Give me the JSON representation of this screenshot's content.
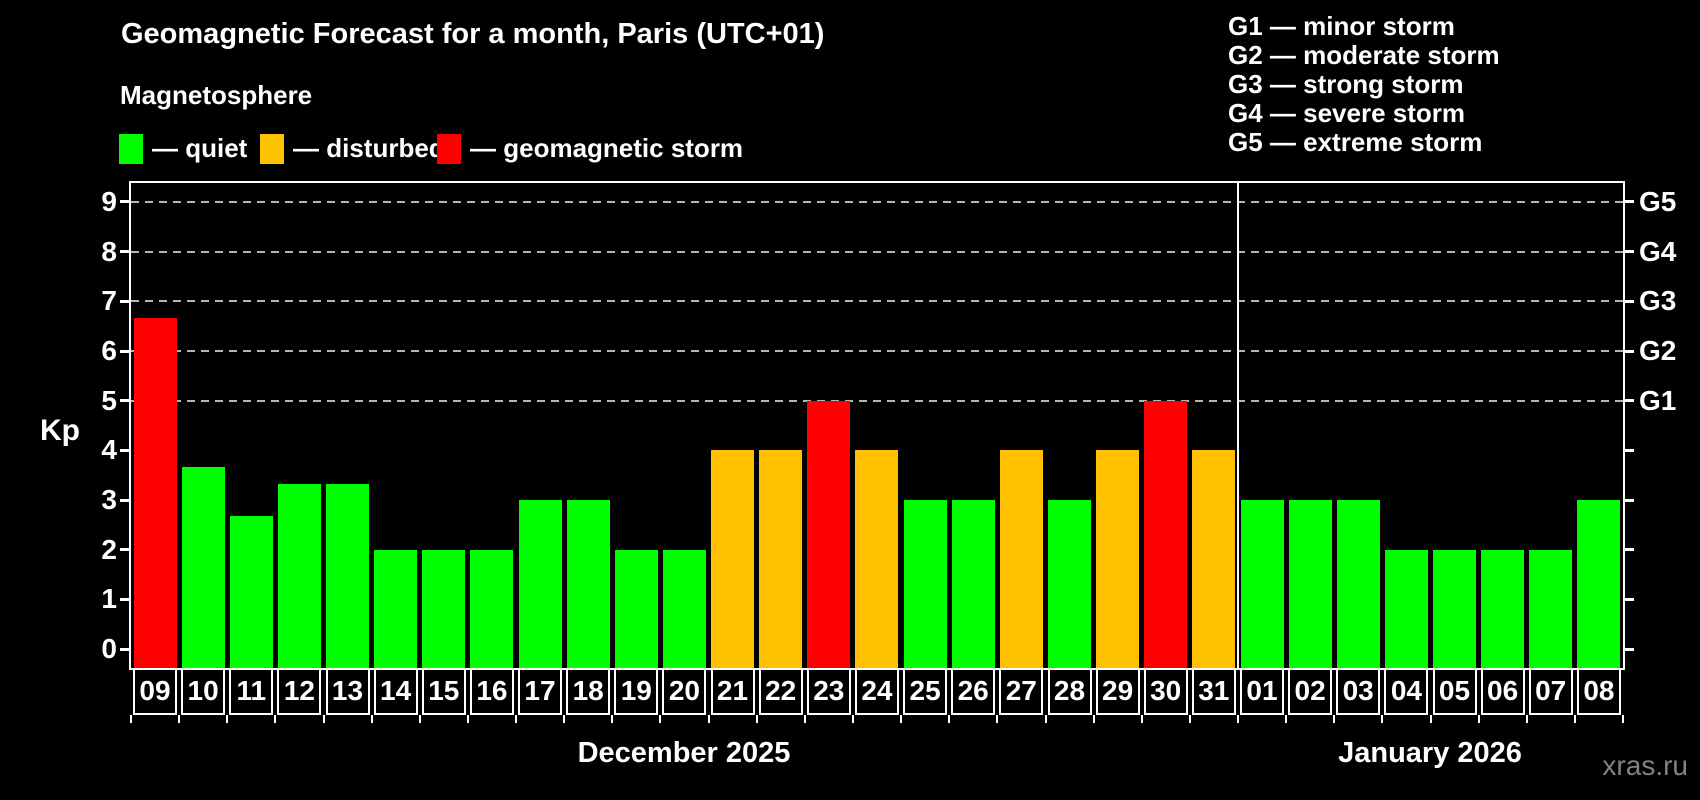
{
  "title": "Geomagnetic Forecast for a month, Paris (UTC+01)",
  "subtitle": "Magnetosphere",
  "legend": {
    "items": [
      {
        "status": "quiet",
        "label": "— quiet",
        "color": "#00ff00"
      },
      {
        "status": "disturbed",
        "label": "— disturbed",
        "color": "#ffc000"
      },
      {
        "status": "storm",
        "label": "— geomagnetic storm",
        "color": "#ff0000"
      }
    ]
  },
  "g_scale_legend": [
    "G1 — minor storm",
    "G2 — moderate storm",
    "G3 — strong storm",
    "G4 — severe storm",
    "G5 — extreme storm"
  ],
  "y_axis": {
    "label": "Kp",
    "ticks": [
      0,
      1,
      2,
      3,
      4,
      5,
      6,
      7,
      8,
      9
    ]
  },
  "right_axis": {
    "ticks": [
      {
        "label": "G1",
        "kp": 5
      },
      {
        "label": "G2",
        "kp": 6
      },
      {
        "label": "G3",
        "kp": 7
      },
      {
        "label": "G4",
        "kp": 8
      },
      {
        "label": "G5",
        "kp": 9
      }
    ]
  },
  "watermark": "xras.ru",
  "chart_data": {
    "type": "bar",
    "title": "Geomagnetic Forecast for a month, Paris (UTC+01)",
    "ylabel": "Kp",
    "ylim": [
      -0.38,
      9.38
    ],
    "gridlines_at_kp": [
      5,
      6,
      7,
      8,
      9
    ],
    "grid": "horizontal dashed lines at storm levels G1–G5 only",
    "legend_position": "top-left",
    "months": [
      {
        "label": "December 2025",
        "bars": [
          {
            "day": "09",
            "kp": 6.67,
            "status": "storm"
          },
          {
            "day": "10",
            "kp": 3.67,
            "status": "quiet"
          },
          {
            "day": "11",
            "kp": 2.67,
            "status": "quiet"
          },
          {
            "day": "12",
            "kp": 3.33,
            "status": "quiet"
          },
          {
            "day": "13",
            "kp": 3.33,
            "status": "quiet"
          },
          {
            "day": "14",
            "kp": 2,
            "status": "quiet"
          },
          {
            "day": "15",
            "kp": 2,
            "status": "quiet"
          },
          {
            "day": "16",
            "kp": 2,
            "status": "quiet"
          },
          {
            "day": "17",
            "kp": 3,
            "status": "quiet"
          },
          {
            "day": "18",
            "kp": 3,
            "status": "quiet"
          },
          {
            "day": "19",
            "kp": 2,
            "status": "quiet"
          },
          {
            "day": "20",
            "kp": 2,
            "status": "quiet"
          },
          {
            "day": "21",
            "kp": 4,
            "status": "disturbed"
          },
          {
            "day": "22",
            "kp": 4,
            "status": "disturbed"
          },
          {
            "day": "23",
            "kp": 5,
            "status": "storm"
          },
          {
            "day": "24",
            "kp": 4,
            "status": "disturbed"
          },
          {
            "day": "25",
            "kp": 3,
            "status": "quiet"
          },
          {
            "day": "26",
            "kp": 3,
            "status": "quiet"
          },
          {
            "day": "27",
            "kp": 4,
            "status": "disturbed"
          },
          {
            "day": "28",
            "kp": 3,
            "status": "quiet"
          },
          {
            "day": "29",
            "kp": 4,
            "status": "disturbed"
          },
          {
            "day": "30",
            "kp": 5,
            "status": "storm"
          },
          {
            "day": "31",
            "kp": 4,
            "status": "disturbed"
          }
        ]
      },
      {
        "label": "January 2026",
        "bars": [
          {
            "day": "01",
            "kp": 3,
            "status": "quiet"
          },
          {
            "day": "02",
            "kp": 3,
            "status": "quiet"
          },
          {
            "day": "03",
            "kp": 3,
            "status": "quiet"
          },
          {
            "day": "04",
            "kp": 2,
            "status": "quiet"
          },
          {
            "day": "05",
            "kp": 2,
            "status": "quiet"
          },
          {
            "day": "06",
            "kp": 2,
            "status": "quiet"
          },
          {
            "day": "07",
            "kp": 2,
            "status": "quiet"
          },
          {
            "day": "08",
            "kp": 3,
            "status": "quiet"
          }
        ]
      }
    ]
  }
}
